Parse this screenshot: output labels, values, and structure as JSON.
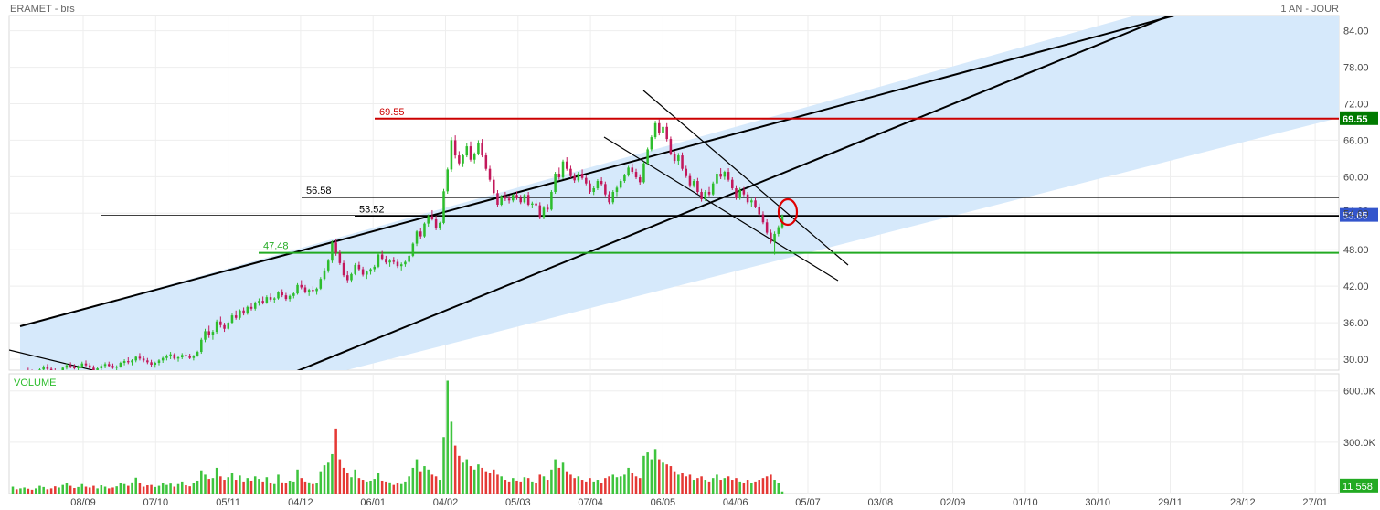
{
  "header": {
    "title": "ERAMET - brs",
    "period": "1 AN - JOUR"
  },
  "volume_panel": {
    "label": "VOLUME"
  },
  "chart_data": {
    "type": "candlestick",
    "price_axis": {
      "ticks": [
        30,
        36,
        42,
        48,
        54,
        60,
        66,
        72,
        78,
        84
      ],
      "tick_labels": [
        "30.00",
        "36.00",
        "42.00",
        "48.00",
        "54.00",
        "60.00",
        "66.00",
        "72.00",
        "78.00",
        "84.00"
      ],
      "ylim": [
        28.2,
        86.5
      ]
    },
    "volume_axis": {
      "ticks": [
        300,
        600
      ],
      "tick_labels": [
        "300.0K",
        "600.0K"
      ],
      "ylim": [
        0,
        700
      ]
    },
    "x_tick_labels": [
      "08/09",
      "07/10",
      "05/11",
      "04/12",
      "06/01",
      "04/02",
      "05/03",
      "07/04",
      "06/05",
      "04/06",
      "05/07",
      "03/08",
      "02/09",
      "01/10",
      "30/10",
      "29/11",
      "28/12",
      "27/01"
    ],
    "horizontal_levels": [
      {
        "value": 69.55,
        "label": "69.55",
        "color": "#cc0000",
        "axis_label": "69.55",
        "axis_bg": "#007a00"
      },
      {
        "value": 56.58,
        "label": "56.58",
        "color": "#000000"
      },
      {
        "value": 53.52,
        "label": "53.52",
        "color": "#000000"
      },
      {
        "value": 47.48,
        "label": "47.48",
        "color": "#22aa22"
      }
    ],
    "last_price": {
      "value": 53.65,
      "label": "53.65",
      "bg": "#3355cc"
    },
    "last_volume": {
      "value": 11.558,
      "label": "11 558",
      "bg": "#22aa22"
    },
    "partial_tick_label": "54.00",
    "colors": {
      "up": "#2dbd2d",
      "down": "#c2185b",
      "channel_fill": "#d6e9fb",
      "volume_up": "#3ec43e",
      "volume_down": "#e53935"
    },
    "candles": [
      [
        26.4,
        27.5,
        26.2,
        27.2,
        40
      ],
      [
        27.2,
        27.8,
        26.8,
        27.0,
        25
      ],
      [
        27.0,
        27.5,
        26.5,
        27.3,
        30
      ],
      [
        27.3,
        28.2,
        27.0,
        28.0,
        35
      ],
      [
        28.0,
        28.6,
        27.6,
        27.8,
        28
      ],
      [
        27.8,
        28.3,
        27.2,
        27.5,
        22
      ],
      [
        27.5,
        28.0,
        27.1,
        27.9,
        30
      ],
      [
        27.9,
        28.5,
        27.6,
        28.3,
        45
      ],
      [
        28.3,
        29.0,
        28.0,
        28.7,
        38
      ],
      [
        28.7,
        29.2,
        28.2,
        28.4,
        25
      ],
      [
        28.4,
        28.8,
        27.9,
        28.1,
        30
      ],
      [
        28.1,
        28.5,
        27.5,
        27.7,
        42
      ],
      [
        27.7,
        28.2,
        27.3,
        28.0,
        35
      ],
      [
        28.0,
        28.8,
        27.8,
        28.6,
        50
      ],
      [
        28.6,
        29.3,
        28.3,
        29.0,
        60
      ],
      [
        29.0,
        29.5,
        28.5,
        28.8,
        45
      ],
      [
        28.8,
        29.2,
        28.3,
        28.5,
        32
      ],
      [
        28.5,
        29.0,
        28.0,
        28.8,
        38
      ],
      [
        28.8,
        29.6,
        28.5,
        29.3,
        55
      ],
      [
        29.3,
        29.8,
        28.8,
        29.0,
        40
      ],
      [
        29.0,
        29.4,
        28.4,
        28.6,
        35
      ],
      [
        28.6,
        29.0,
        28.0,
        28.2,
        45
      ],
      [
        28.2,
        28.7,
        27.8,
        28.5,
        30
      ],
      [
        28.5,
        29.2,
        28.2,
        28.9,
        48
      ],
      [
        28.9,
        29.5,
        28.5,
        29.2,
        40
      ],
      [
        29.2,
        29.6,
        28.7,
        28.9,
        30
      ],
      [
        28.9,
        29.3,
        28.4,
        28.6,
        35
      ],
      [
        28.6,
        29.0,
        28.1,
        28.8,
        42
      ],
      [
        28.8,
        29.6,
        28.6,
        29.4,
        60
      ],
      [
        29.4,
        30.0,
        29.0,
        29.7,
        55
      ],
      [
        29.7,
        30.3,
        29.2,
        29.5,
        45
      ],
      [
        29.5,
        30.0,
        29.0,
        29.8,
        65
      ],
      [
        29.8,
        30.6,
        29.5,
        30.4,
        92
      ],
      [
        30.4,
        31.0,
        29.8,
        30.1,
        60
      ],
      [
        30.1,
        30.5,
        29.5,
        29.8,
        40
      ],
      [
        29.8,
        30.2,
        29.2,
        29.5,
        48
      ],
      [
        29.5,
        29.9,
        28.8,
        29.1,
        50
      ],
      [
        29.1,
        29.6,
        28.6,
        29.4,
        38
      ],
      [
        29.4,
        30.0,
        29.0,
        29.8,
        45
      ],
      [
        29.8,
        30.4,
        29.4,
        30.2,
        62
      ],
      [
        30.2,
        30.8,
        29.8,
        30.5,
        50
      ],
      [
        30.5,
        31.2,
        30.0,
        30.8,
        58
      ],
      [
        30.8,
        31.0,
        29.9,
        30.1,
        40
      ],
      [
        30.1,
        30.6,
        29.6,
        30.3,
        55
      ],
      [
        30.3,
        31.0,
        30.0,
        30.7,
        70
      ],
      [
        30.7,
        31.2,
        30.2,
        30.5,
        48
      ],
      [
        30.5,
        30.9,
        30.0,
        30.2,
        42
      ],
      [
        30.2,
        30.7,
        29.8,
        30.6,
        60
      ],
      [
        30.6,
        31.4,
        30.4,
        31.2,
        75
      ],
      [
        31.2,
        33.5,
        30.9,
        33.2,
        135
      ],
      [
        33.2,
        35.0,
        32.8,
        34.6,
        110
      ],
      [
        34.6,
        35.5,
        33.5,
        34.0,
        85
      ],
      [
        34.0,
        34.8,
        33.2,
        34.5,
        90
      ],
      [
        34.5,
        36.5,
        34.2,
        36.2,
        150
      ],
      [
        36.2,
        37.0,
        35.2,
        35.6,
        100
      ],
      [
        35.6,
        36.0,
        34.5,
        35.0,
        80
      ],
      [
        35.0,
        36.2,
        34.8,
        36.0,
        95
      ],
      [
        36.0,
        37.5,
        35.8,
        37.2,
        120
      ],
      [
        37.2,
        38.0,
        36.5,
        36.8,
        80
      ],
      [
        36.8,
        38.2,
        36.5,
        38.0,
        105
      ],
      [
        38.0,
        38.5,
        37.2,
        37.5,
        70
      ],
      [
        37.5,
        38.8,
        37.3,
        38.6,
        90
      ],
      [
        38.6,
        39.2,
        38.0,
        38.3,
        75
      ],
      [
        38.3,
        39.5,
        38.0,
        39.2,
        100
      ],
      [
        39.2,
        40.0,
        38.8,
        39.6,
        85
      ],
      [
        39.6,
        40.3,
        39.0,
        39.3,
        70
      ],
      [
        39.3,
        40.5,
        39.1,
        40.2,
        95
      ],
      [
        40.2,
        40.8,
        39.5,
        39.8,
        60
      ],
      [
        39.8,
        40.2,
        39.2,
        40.0,
        55
      ],
      [
        40.0,
        41.2,
        39.8,
        41.0,
        110
      ],
      [
        41.0,
        41.5,
        40.2,
        40.5,
        65
      ],
      [
        40.5,
        40.9,
        39.6,
        39.9,
        60
      ],
      [
        39.9,
        40.6,
        39.5,
        40.4,
        75
      ],
      [
        40.4,
        41.0,
        40.0,
        40.8,
        70
      ],
      [
        40.8,
        42.5,
        40.6,
        42.2,
        140
      ],
      [
        42.2,
        43.0,
        41.5,
        41.8,
        90
      ],
      [
        41.8,
        42.2,
        40.8,
        41.0,
        70
      ],
      [
        41.0,
        41.6,
        40.4,
        41.4,
        65
      ],
      [
        41.4,
        42.0,
        40.9,
        41.2,
        55
      ],
      [
        41.2,
        41.8,
        40.6,
        41.6,
        60
      ],
      [
        41.6,
        43.5,
        41.4,
        43.2,
        130
      ],
      [
        43.2,
        45.0,
        43.0,
        44.6,
        165
      ],
      [
        44.6,
        46.5,
        44.2,
        46.2,
        180
      ],
      [
        46.2,
        49.5,
        45.8,
        49.2,
        230
      ],
      [
        49.2,
        49.8,
        47.0,
        47.5,
        380
      ],
      [
        47.5,
        48.0,
        45.5,
        45.8,
        200
      ],
      [
        45.8,
        46.2,
        43.5,
        43.8,
        150
      ],
      [
        43.8,
        44.5,
        42.5,
        43.0,
        120
      ],
      [
        43.0,
        44.2,
        42.6,
        44.0,
        95
      ],
      [
        44.0,
        45.8,
        43.8,
        45.5,
        140
      ],
      [
        45.5,
        46.0,
        44.5,
        44.8,
        90
      ],
      [
        44.8,
        45.2,
        43.6,
        43.9,
        80
      ],
      [
        43.9,
        44.6,
        43.2,
        44.4,
        70
      ],
      [
        44.4,
        45.0,
        43.9,
        44.8,
        75
      ],
      [
        44.8,
        45.5,
        44.3,
        45.2,
        85
      ],
      [
        45.2,
        47.5,
        45.0,
        47.2,
        120
      ],
      [
        47.2,
        47.8,
        46.2,
        46.5,
        75
      ],
      [
        46.5,
        47.0,
        45.6,
        45.9,
        70
      ],
      [
        45.9,
        46.5,
        45.2,
        46.2,
        65
      ],
      [
        46.2,
        46.8,
        45.6,
        46.0,
        50
      ],
      [
        46.0,
        46.5,
        45.0,
        45.3,
        60
      ],
      [
        45.3,
        45.9,
        44.6,
        45.6,
        55
      ],
      [
        45.6,
        46.2,
        45.2,
        46.0,
        70
      ],
      [
        46.0,
        47.2,
        45.8,
        47.0,
        100
      ],
      [
        47.0,
        49.2,
        46.8,
        49.0,
        150
      ],
      [
        49.0,
        51.2,
        48.6,
        51.0,
        200
      ],
      [
        51.0,
        51.6,
        49.8,
        50.2,
        130
      ],
      [
        50.2,
        52.5,
        50.0,
        52.3,
        160
      ],
      [
        52.3,
        53.8,
        51.8,
        53.5,
        140
      ],
      [
        53.5,
        54.5,
        52.8,
        53.0,
        110
      ],
      [
        53.0,
        53.6,
        51.2,
        51.6,
        100
      ],
      [
        51.6,
        52.6,
        51.2,
        52.4,
        80
      ],
      [
        52.4,
        58.0,
        52.2,
        57.6,
        330
      ],
      [
        57.6,
        61.5,
        57.2,
        61.2,
        660
      ],
      [
        61.2,
        66.5,
        60.8,
        66.0,
        420
      ],
      [
        66.0,
        66.8,
        63.0,
        63.5,
        280
      ],
      [
        63.5,
        64.2,
        61.8,
        62.2,
        220
      ],
      [
        62.2,
        63.8,
        61.6,
        63.5,
        180
      ],
      [
        63.5,
        65.5,
        63.2,
        65.0,
        200
      ],
      [
        65.0,
        65.8,
        62.5,
        62.8,
        160
      ],
      [
        62.8,
        64.0,
        62.2,
        63.8,
        140
      ],
      [
        63.8,
        66.0,
        63.5,
        65.6,
        170
      ],
      [
        65.6,
        66.2,
        63.2,
        63.5,
        150
      ],
      [
        63.5,
        64.0,
        61.0,
        61.3,
        130
      ],
      [
        61.3,
        61.8,
        59.2,
        59.5,
        120
      ],
      [
        59.5,
        60.0,
        57.0,
        57.3,
        140
      ],
      [
        57.3,
        57.8,
        55.0,
        55.4,
        110
      ],
      [
        55.4,
        57.0,
        55.2,
        56.8,
        100
      ],
      [
        56.8,
        57.5,
        56.0,
        56.4,
        80
      ],
      [
        56.4,
        56.9,
        55.6,
        56.1,
        70
      ],
      [
        56.1,
        57.2,
        55.8,
        57.0,
        90
      ],
      [
        57.0,
        57.6,
        56.2,
        56.5,
        75
      ],
      [
        56.5,
        57.0,
        55.5,
        55.8,
        70
      ],
      [
        55.8,
        57.2,
        55.6,
        57.0,
        95
      ],
      [
        57.0,
        57.5,
        55.2,
        55.4,
        90
      ],
      [
        55.4,
        55.9,
        54.8,
        55.6,
        70
      ],
      [
        55.6,
        56.2,
        55.1,
        55.3,
        60
      ],
      [
        55.3,
        55.8,
        53.0,
        53.4,
        110
      ],
      [
        53.4,
        55.2,
        53.0,
        54.9,
        100
      ],
      [
        54.9,
        55.5,
        54.2,
        54.6,
        80
      ],
      [
        54.6,
        57.8,
        54.4,
        57.5,
        140
      ],
      [
        57.5,
        60.8,
        57.2,
        60.5,
        200
      ],
      [
        60.5,
        61.5,
        59.5,
        59.9,
        150
      ],
      [
        59.9,
        62.8,
        59.6,
        62.5,
        180
      ],
      [
        62.5,
        63.2,
        61.0,
        61.3,
        130
      ],
      [
        61.3,
        61.8,
        59.8,
        60.1,
        110
      ],
      [
        60.1,
        60.6,
        59.0,
        59.4,
        90
      ],
      [
        59.4,
        60.8,
        59.1,
        60.5,
        100
      ],
      [
        60.5,
        61.2,
        59.5,
        59.8,
        80
      ],
      [
        59.8,
        60.2,
        58.6,
        58.9,
        70
      ],
      [
        58.9,
        59.4,
        57.2,
        57.5,
        90
      ],
      [
        57.5,
        58.4,
        57.0,
        58.1,
        70
      ],
      [
        58.1,
        59.6,
        57.8,
        59.3,
        80
      ],
      [
        59.3,
        59.9,
        58.5,
        58.8,
        60
      ],
      [
        58.8,
        59.2,
        56.8,
        57.1,
        90
      ],
      [
        57.1,
        57.6,
        55.5,
        55.8,
        100
      ],
      [
        55.8,
        57.8,
        55.5,
        57.5,
        110
      ],
      [
        57.5,
        58.6,
        56.8,
        58.2,
        95
      ],
      [
        58.2,
        59.6,
        58.0,
        59.3,
        100
      ],
      [
        59.3,
        60.5,
        59.0,
        60.2,
        110
      ],
      [
        60.2,
        61.8,
        60.0,
        61.5,
        150
      ],
      [
        61.5,
        62.2,
        60.5,
        60.8,
        120
      ],
      [
        60.8,
        61.3,
        59.6,
        59.9,
        100
      ],
      [
        59.9,
        60.4,
        58.7,
        59.1,
        90
      ],
      [
        59.1,
        62.5,
        58.9,
        62.2,
        220
      ],
      [
        62.2,
        64.8,
        62.0,
        64.5,
        240
      ],
      [
        64.5,
        66.8,
        64.2,
        66.5,
        200
      ],
      [
        66.5,
        69.2,
        66.2,
        68.8,
        260
      ],
      [
        68.8,
        69.5,
        66.8,
        67.2,
        200
      ],
      [
        67.2,
        68.5,
        66.6,
        68.2,
        180
      ],
      [
        68.2,
        68.8,
        65.8,
        66.2,
        170
      ],
      [
        66.2,
        66.6,
        63.5,
        63.8,
        160
      ],
      [
        63.8,
        64.2,
        62.2,
        62.6,
        130
      ],
      [
        62.6,
        63.9,
        62.0,
        63.5,
        110
      ],
      [
        63.5,
        64.0,
        61.0,
        61.3,
        120
      ],
      [
        61.3,
        61.8,
        59.8,
        60.1,
        100
      ],
      [
        60.1,
        60.6,
        58.2,
        58.6,
        110
      ],
      [
        58.6,
        59.6,
        58.2,
        59.3,
        80
      ],
      [
        59.3,
        59.8,
        57.2,
        57.5,
        90
      ],
      [
        57.5,
        58.0,
        55.9,
        56.3,
        100
      ],
      [
        56.3,
        57.8,
        56.0,
        57.5,
        80
      ],
      [
        57.5,
        58.3,
        56.8,
        57.1,
        70
      ],
      [
        57.1,
        59.2,
        56.9,
        58.9,
        90
      ],
      [
        58.9,
        60.8,
        58.6,
        60.5,
        110
      ],
      [
        60.5,
        61.4,
        59.6,
        60.0,
        80
      ],
      [
        60.0,
        61.0,
        59.5,
        60.8,
        90
      ],
      [
        60.8,
        61.4,
        59.2,
        59.5,
        100
      ],
      [
        59.5,
        59.9,
        57.8,
        58.1,
        80
      ],
      [
        58.1,
        58.6,
        56.2,
        56.5,
        90
      ],
      [
        56.5,
        58.2,
        56.2,
        57.8,
        70
      ],
      [
        57.8,
        58.3,
        56.8,
        57.1,
        60
      ],
      [
        57.1,
        57.5,
        55.5,
        55.8,
        80
      ],
      [
        55.8,
        56.4,
        55.0,
        56.1,
        60
      ],
      [
        56.1,
        56.6,
        54.8,
        55.1,
        70
      ],
      [
        55.1,
        55.6,
        53.4,
        53.8,
        80
      ],
      [
        53.8,
        54.3,
        52.2,
        52.5,
        90
      ],
      [
        52.5,
        53.0,
        50.5,
        50.8,
        100
      ],
      [
        50.8,
        51.3,
        49.0,
        49.3,
        110
      ],
      [
        49.3,
        51.0,
        47.2,
        50.6,
        80
      ],
      [
        50.6,
        52.0,
        50.2,
        51.7,
        60
      ],
      [
        51.7,
        53.8,
        51.4,
        53.65,
        12
      ]
    ]
  }
}
